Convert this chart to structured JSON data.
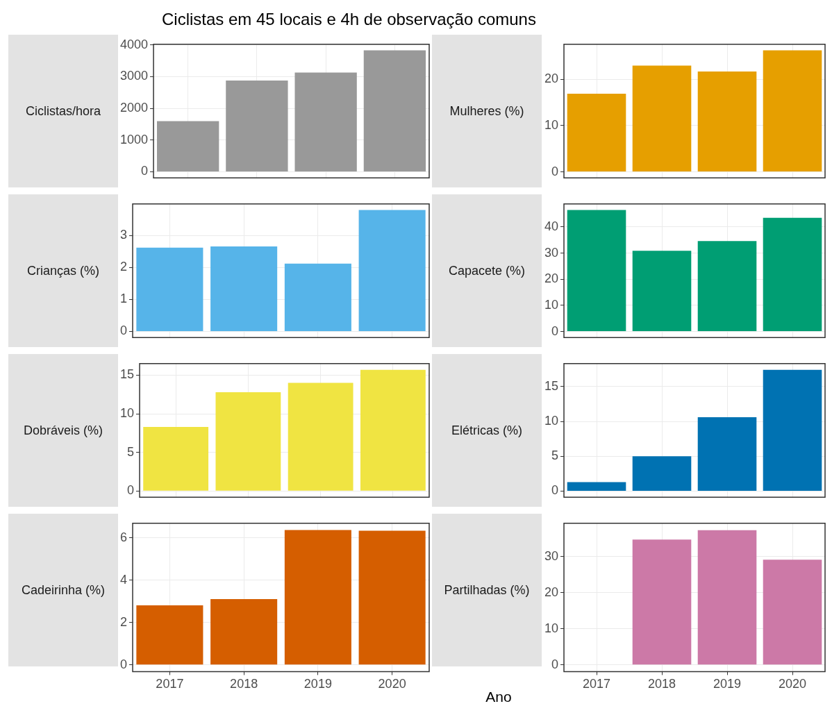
{
  "chart_data": [
    {
      "type": "bar",
      "title": "Ciclistas em 45 locais e 4h de observação comuns",
      "ylabel": "Ciclistas/hora",
      "categories": [
        "2017",
        "2018",
        "2019",
        "2020"
      ],
      "values": [
        1600,
        2880,
        3130,
        3830
      ],
      "color": "#999999",
      "ylim": [
        -191.5,
        4021.5
      ],
      "yticks": [
        0,
        1000,
        2000,
        3000,
        4000
      ],
      "grid": true,
      "tick_labels": "y"
    },
    {
      "type": "bar",
      "ylabel": "Mulheres (%)",
      "categories": [
        "2017",
        "2018",
        "2019",
        "2020"
      ],
      "values": [
        16.9,
        23.0,
        21.7,
        26.3
      ],
      "color": "#e69f00",
      "ylim": [
        -1.3,
        27.6
      ],
      "yticks": [
        0,
        10,
        20
      ],
      "grid": true,
      "tick_labels": "y"
    },
    {
      "type": "bar",
      "ylabel": "Crianças (%)",
      "categories": [
        "2017",
        "2018",
        "2019",
        "2020"
      ],
      "values": [
        2.62,
        2.66,
        2.12,
        3.8
      ],
      "color": "#56b4e9",
      "ylim": [
        -0.19,
        3.99
      ],
      "yticks": [
        0,
        1,
        2,
        3
      ],
      "grid": true,
      "tick_labels": "y"
    },
    {
      "type": "bar",
      "ylabel": "Capacete (%)",
      "categories": [
        "2017",
        "2018",
        "2019",
        "2020"
      ],
      "values": [
        46.5,
        30.9,
        34.6,
        43.5
      ],
      "color": "#009e73",
      "ylim": [
        -2.3,
        48.8
      ],
      "yticks": [
        0,
        10,
        20,
        30,
        40
      ],
      "grid": true,
      "tick_labels": "y"
    },
    {
      "type": "bar",
      "ylabel": "Dobráveis (%)",
      "categories": [
        "2017",
        "2018",
        "2019",
        "2020"
      ],
      "values": [
        8.3,
        12.8,
        14.0,
        15.7
      ],
      "color": "#f0e442",
      "ylim": [
        -0.8,
        16.5
      ],
      "yticks": [
        0,
        5,
        10,
        15
      ],
      "grid": true,
      "tick_labels": "y"
    },
    {
      "type": "bar",
      "ylabel": "Elétricas (%)",
      "categories": [
        "2017",
        "2018",
        "2019",
        "2020"
      ],
      "values": [
        1.3,
        5.0,
        10.6,
        17.4
      ],
      "color": "#0072b2",
      "ylim": [
        -0.87,
        18.3
      ],
      "yticks": [
        0,
        5,
        10,
        15
      ],
      "grid": true,
      "tick_labels": "y"
    },
    {
      "type": "bar",
      "ylabel": "Cadeirinha (%)",
      "categories": [
        "2017",
        "2018",
        "2019",
        "2020"
      ],
      "values": [
        2.81,
        3.1,
        6.36,
        6.33
      ],
      "color": "#d55e00",
      "ylim": [
        -0.32,
        6.68
      ],
      "yticks": [
        0,
        2,
        4,
        6
      ],
      "grid": true
    },
    {
      "type": "bar",
      "ylabel": "Partilhadas (%)",
      "xlabel": "Ano",
      "categories": [
        "2017",
        "2018",
        "2019",
        "2020"
      ],
      "values": [
        null,
        34.7,
        37.3,
        29.1
      ],
      "color": "#cc79a7",
      "ylim": [
        -1.87,
        39.2
      ],
      "yticks": [
        0,
        10,
        20,
        30
      ],
      "grid": true
    }
  ]
}
